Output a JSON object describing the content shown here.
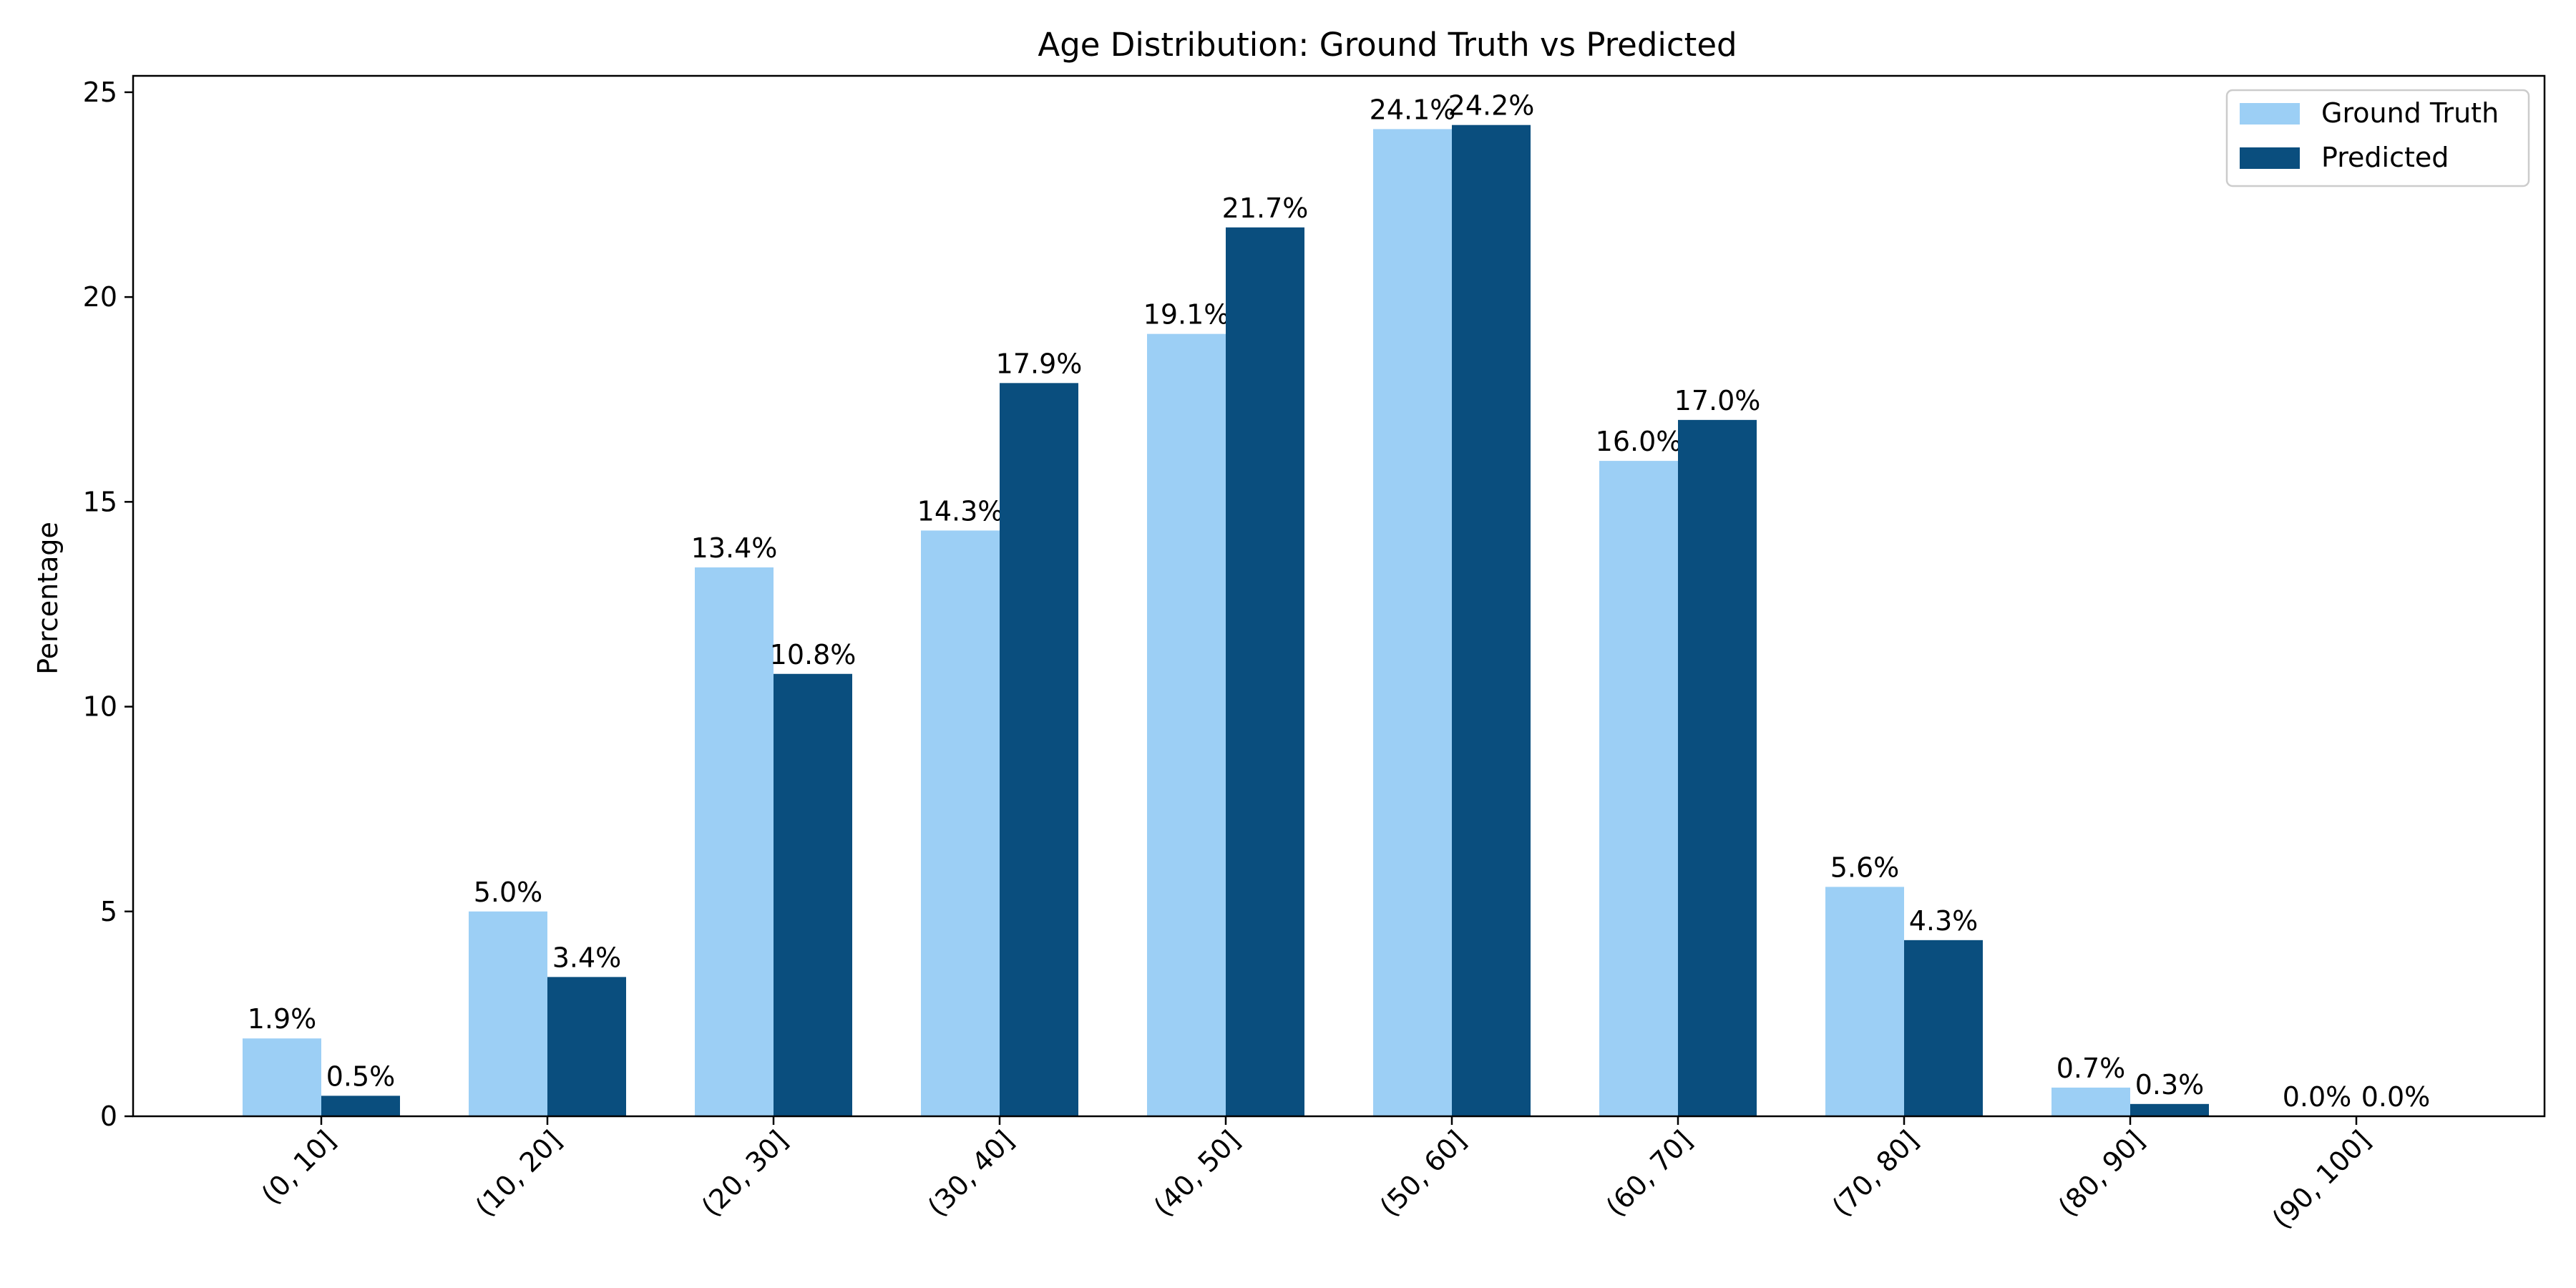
{
  "chart_data": {
    "type": "bar",
    "title": "Age Distribution: Ground Truth vs Predicted",
    "xlabel": "",
    "ylabel": "Percentage",
    "categories": [
      "(0, 10]",
      "(10, 20]",
      "(20, 30]",
      "(30, 40]",
      "(40, 50]",
      "(50, 60]",
      "(60, 70]",
      "(70, 80]",
      "(80, 90]",
      "(90, 100]"
    ],
    "series": [
      {
        "name": "Ground Truth",
        "color": "#9ccff5",
        "values": [
          1.9,
          5.0,
          13.4,
          14.3,
          19.1,
          24.1,
          16.0,
          5.6,
          0.7,
          0.0
        ],
        "labels": [
          "1.9%",
          "5.0%",
          "13.4%",
          "14.3%",
          "19.1%",
          "24.1%",
          "16.0%",
          "5.6%",
          "0.7%",
          "0.0%"
        ]
      },
      {
        "name": "Predicted",
        "color": "#0a4e7e",
        "values": [
          0.5,
          3.4,
          10.8,
          17.9,
          21.7,
          24.2,
          17.0,
          4.3,
          0.3,
          0.0
        ],
        "labels": [
          "0.5%",
          "3.4%",
          "10.8%",
          "17.9%",
          "21.7%",
          "24.2%",
          "17.0%",
          "4.3%",
          "0.3%",
          "0.0%"
        ]
      }
    ],
    "yticks": [
      0,
      5,
      10,
      15,
      20,
      25
    ],
    "ylim": [
      0,
      25.4
    ],
    "grid": false,
    "legend_position": "top-right"
  }
}
